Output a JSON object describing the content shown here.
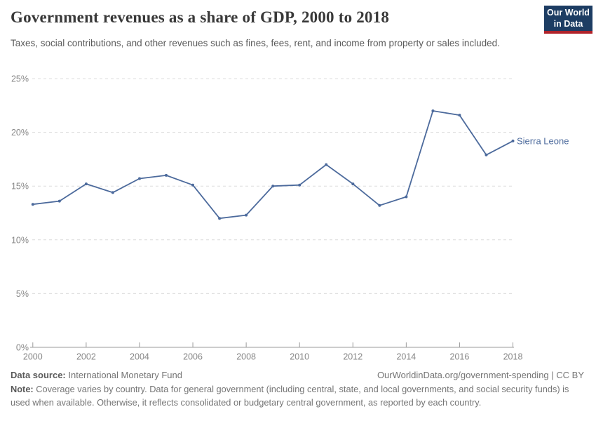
{
  "header": {
    "title": "Government revenues as a share of GDP, 2000 to 2018",
    "subtitle": "Taxes, social contributions, and other revenues such as fines, fees, rent, and income from property or sales included.",
    "logo": {
      "line1": "Our World",
      "line2": "in Data"
    }
  },
  "chart_data": {
    "type": "line",
    "title": "Government revenues as a share of GDP, 2000 to 2018",
    "x": [
      2000,
      2001,
      2002,
      2003,
      2004,
      2005,
      2006,
      2007,
      2008,
      2009,
      2010,
      2011,
      2012,
      2013,
      2014,
      2015,
      2016,
      2017,
      2018
    ],
    "series": [
      {
        "name": "Sierra Leone",
        "color": "#4c6a9c",
        "values": [
          13.3,
          13.6,
          15.2,
          14.4,
          15.7,
          16.0,
          15.1,
          12.0,
          12.3,
          15.0,
          15.1,
          17.0,
          15.2,
          13.2,
          14.0,
          22.0,
          21.6,
          17.9,
          19.2
        ]
      }
    ],
    "xlabel": "",
    "ylabel": "",
    "ylim": [
      0,
      25
    ],
    "yticks": [
      0,
      5,
      10,
      15,
      20,
      25
    ],
    "ytick_labels": [
      "0%",
      "5%",
      "10%",
      "15%",
      "20%",
      "25%"
    ],
    "xticks": [
      2000,
      2002,
      2004,
      2006,
      2008,
      2010,
      2012,
      2014,
      2016,
      2018
    ],
    "grid": "horizontal-dashed",
    "legend_position": "end-of-line-label"
  },
  "footer": {
    "datasource_label": "Data source:",
    "datasource_value": "International Monetary Fund",
    "attribution": "OurWorldinData.org/government-spending | CC BY",
    "note_label": "Note:",
    "note_text": "Coverage varies by country. Data for general government (including central, state, and local governments, and social security funds) is used when available. Otherwise, it reflects consolidated or budgetary central government, as reported by each country."
  },
  "colors": {
    "line": "#4c6a9c",
    "grid": "#dcdcdc",
    "axis": "#9b9b9b",
    "tick_text": "#878787",
    "logo_bg": "#1d3d63",
    "logo_accent": "#b0232a"
  }
}
